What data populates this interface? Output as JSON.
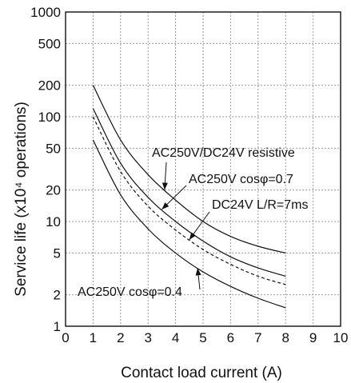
{
  "chart_data": {
    "type": "line",
    "title": "",
    "xlabel": "Contact load current (A)",
    "ylabel": "Service life (x10⁴ operations)",
    "xlim": [
      0,
      10
    ],
    "ylim": [
      1,
      1000
    ],
    "y_scale": "log",
    "grid": true,
    "x_ticks": [
      "0",
      "1",
      "2",
      "3",
      "4",
      "5",
      "6",
      "7",
      "8",
      "9",
      "10"
    ],
    "y_ticks": [
      {
        "value": 1,
        "label": "1"
      },
      {
        "value": 2,
        "label": "2"
      },
      {
        "value": 5,
        "label": "5"
      },
      {
        "value": 10,
        "label": "10"
      },
      {
        "value": 20,
        "label": "20"
      },
      {
        "value": 50,
        "label": "50"
      },
      {
        "value": 100,
        "label": "100"
      },
      {
        "value": 200,
        "label": "200"
      },
      {
        "value": 500,
        "label": "500"
      },
      {
        "value": 1000,
        "label": "1000"
      }
    ],
    "series": [
      {
        "name": "AC250V/DC24V resistive",
        "style": "solid",
        "x": [
          1,
          2,
          3,
          4,
          5,
          6,
          7,
          8
        ],
        "y": [
          200,
          60,
          28,
          16,
          10,
          7.2,
          5.8,
          5
        ]
      },
      {
        "name": "AC250V cosφ=0.7",
        "style": "solid",
        "x": [
          1,
          2,
          3,
          4,
          5,
          6,
          7,
          8
        ],
        "y": [
          120,
          36,
          17,
          10,
          6.5,
          4.6,
          3.6,
          3
        ]
      },
      {
        "name": "DC24V L/R=7ms",
        "style": "dashed",
        "x": [
          1,
          2,
          3,
          4,
          5,
          6,
          7,
          8
        ],
        "y": [
          100,
          30,
          14,
          8.3,
          5.4,
          3.9,
          3,
          2.5
        ]
      },
      {
        "name": "AC250V cosφ=0.4",
        "style": "solid",
        "x": [
          1,
          2,
          3,
          4,
          5,
          6,
          7,
          8
        ],
        "y": [
          60,
          18,
          8.5,
          5,
          3.3,
          2.4,
          1.85,
          1.5
        ]
      }
    ],
    "annotations": [
      {
        "text": "AC250V/DC24V resistive",
        "series": 0,
        "anchor_x": 3.6
      },
      {
        "text": "AC250V cosφ=0.7",
        "series": 1,
        "anchor_x": 3.5
      },
      {
        "text": "DC24V L/R=7ms",
        "series": 2,
        "anchor_x": 4.5
      },
      {
        "text": "AC250V cosφ=0.4",
        "series": 3,
        "anchor_x": 4.8
      }
    ]
  }
}
